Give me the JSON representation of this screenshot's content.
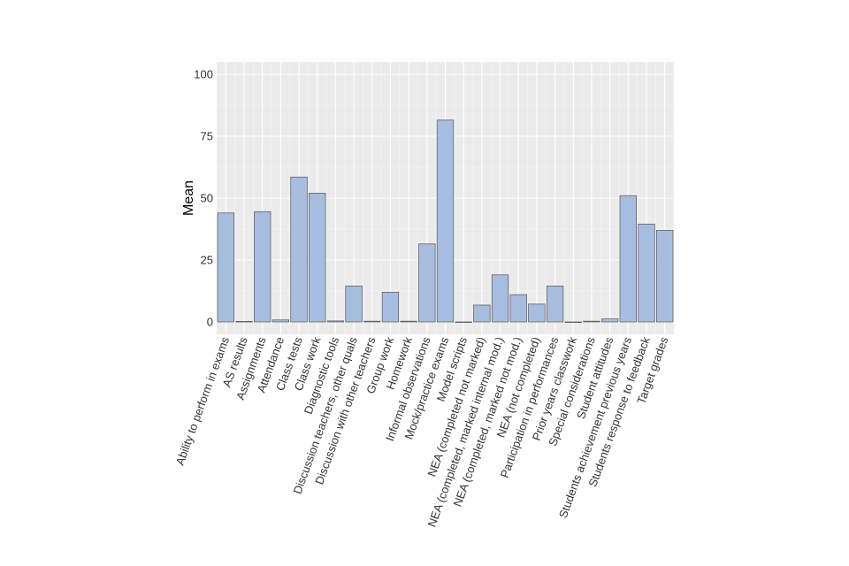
{
  "chart_data": {
    "type": "bar",
    "title": "",
    "xlabel": "",
    "ylabel": "Mean",
    "ylim": [
      -5,
      105
    ],
    "yticks": [
      0,
      25,
      50,
      75,
      100
    ],
    "grid": true,
    "colors": {
      "panel": "#EBEBEB",
      "grid_major": "#FFFFFF",
      "grid_minor": "#F5F5F5",
      "bar_fill": "#A7BDDF",
      "bar_stroke": "#555555"
    },
    "categories": [
      "Ability to perform in exams",
      "AS results",
      "Assignments",
      "Attendance",
      "Class tests",
      "Class work",
      "Diagnostic tools",
      "Discussion teachers, other quals",
      "Discussion with other teachers",
      "Group work",
      "Homework",
      "Informal observations",
      "Mock/practice exams",
      "Model scripts",
      "NEA (completed not marked)",
      "NEA (completed, marked internal mod.)",
      "NEA (completed, marked not mod.)",
      "NEA (not completed)",
      "Participation in performances",
      "Prior years classwork",
      "Special considerations",
      "Student attitudes",
      "Students achievement previous years",
      "Students response to feedback",
      "Target grades"
    ],
    "values": [
      44,
      0.2,
      44.5,
      0.8,
      58.5,
      52,
      0.4,
      14.5,
      0.3,
      12,
      0.3,
      31.5,
      81.5,
      0,
      6.8,
      19,
      11,
      7.2,
      14.5,
      0,
      0.3,
      1.2,
      51,
      39.5,
      37
    ]
  }
}
